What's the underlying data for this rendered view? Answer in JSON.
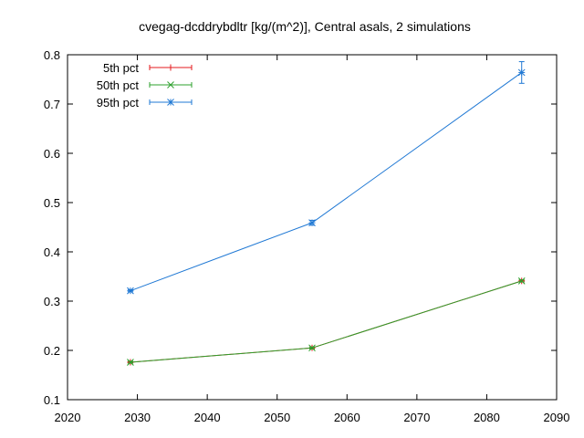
{
  "chart_data": {
    "type": "line",
    "title": "cvegag-dcddrybdltr [kg/(m^2)], Central asals, 2 simulations",
    "xlabel": "",
    "ylabel": "",
    "xlim": [
      2020,
      2090
    ],
    "ylim": [
      0.1,
      0.8
    ],
    "xticks": [
      2020,
      2030,
      2040,
      2050,
      2060,
      2070,
      2080,
      2090
    ],
    "yticks": [
      0.1,
      0.2,
      0.3,
      0.4,
      0.5,
      0.6,
      0.7,
      0.8
    ],
    "grid": false,
    "legend_position": "top-left",
    "series": [
      {
        "name": "5th pct",
        "color": "#e41a1c",
        "marker": "plus",
        "points": [
          {
            "x": 2029,
            "y": 0.176,
            "err": 0.002
          },
          {
            "x": 2055,
            "y": 0.205,
            "err": 0.002
          },
          {
            "x": 2085,
            "y": 0.341,
            "err": 0.002
          }
        ]
      },
      {
        "name": "50th pct",
        "color": "#2ca02c",
        "marker": "cross",
        "points": [
          {
            "x": 2029,
            "y": 0.176,
            "err": 0.002
          },
          {
            "x": 2055,
            "y": 0.205,
            "err": 0.002
          },
          {
            "x": 2085,
            "y": 0.341,
            "err": 0.002
          }
        ]
      },
      {
        "name": "95th pct",
        "color": "#1f78d4",
        "marker": "star",
        "points": [
          {
            "x": 2029,
            "y": 0.321,
            "err": 0.002
          },
          {
            "x": 2055,
            "y": 0.459,
            "err": 0.005
          },
          {
            "x": 2085,
            "y": 0.764,
            "err": 0.022
          }
        ]
      }
    ]
  }
}
